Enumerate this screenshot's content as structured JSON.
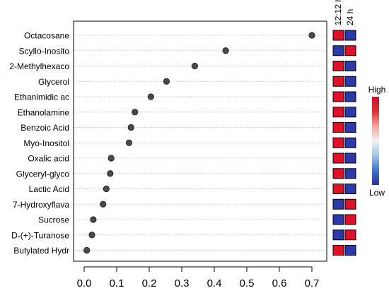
{
  "chart_data": {
    "type": "scatter",
    "orientation": "horizontal-dot",
    "categories": [
      "Octacosane",
      "Scyllo-Inosito",
      "2-Methylhexaco",
      "Glycerol",
      "Ethanimidic ac",
      "Ethanolamine",
      "Benzoic Acid",
      "Myo-Inositol",
      "Oxalic acid",
      "Glyceryl-glyco",
      "Lactic Acid",
      "7-Hydroxyflava",
      "Sucrose",
      "D-(+)-Turanose",
      "Butylated Hydr"
    ],
    "values": [
      0.7,
      0.435,
      0.34,
      0.253,
      0.205,
      0.156,
      0.144,
      0.138,
      0.083,
      0.08,
      0.068,
      0.058,
      0.028,
      0.024,
      0.008
    ],
    "xlim": [
      -0.02,
      0.73
    ],
    "x_ticks": [
      "0.0",
      "0.1",
      "0.2",
      "0.3",
      "0.4",
      "0.5",
      "0.6",
      "0.7"
    ],
    "x_tick_values": [
      0.0,
      0.1,
      0.2,
      0.3,
      0.4,
      0.5,
      0.6,
      0.7
    ],
    "grid": "horizontal-dotted",
    "heatmap": {
      "columns": [
        "12:12 h",
        "24 h"
      ],
      "levels": [
        [
          "high",
          "low"
        ],
        [
          "low",
          "high"
        ],
        [
          "high",
          "low"
        ],
        [
          "high",
          "low"
        ],
        [
          "high",
          "low"
        ],
        [
          "high",
          "low"
        ],
        [
          "high",
          "low"
        ],
        [
          "high",
          "low"
        ],
        [
          "high",
          "low"
        ],
        [
          "high",
          "low"
        ],
        [
          "high",
          "low"
        ],
        [
          "low",
          "high"
        ],
        [
          "low",
          "high"
        ],
        [
          "low",
          "high"
        ],
        [
          "high",
          "low"
        ]
      ],
      "colors": {
        "high": "#e0102a",
        "low": "#2b3aa8"
      }
    },
    "legend": {
      "high_label": "High",
      "low_label": "Low",
      "gradient": [
        "#2b2f9e",
        "#3a78c8",
        "#9cc6e8",
        "#f2f2f2",
        "#f4a39a",
        "#e0302e",
        "#c8102a"
      ]
    },
    "point_color": "#4a4a4a"
  }
}
